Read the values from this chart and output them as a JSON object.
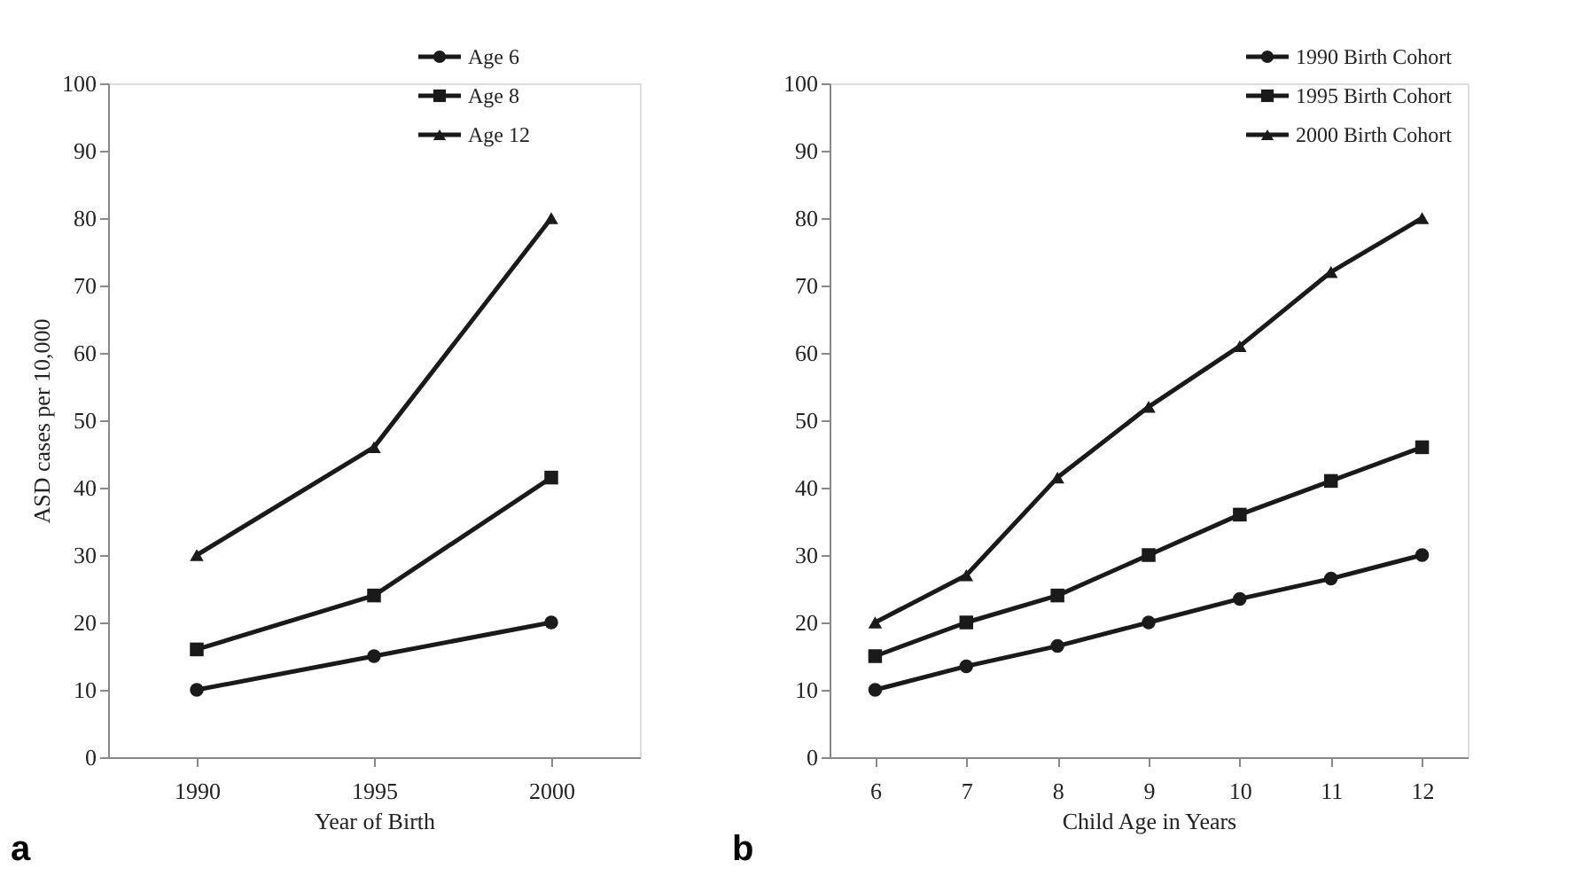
{
  "chart_data": [
    {
      "type": "line",
      "xlabel": "Year of Birth",
      "ylabel": "ASD cases per 10,000",
      "categories": [
        "1990",
        "1995",
        "2000"
      ],
      "ylim": [
        0,
        100
      ],
      "yticks": [
        0,
        10,
        20,
        30,
        40,
        50,
        60,
        70,
        80,
        90,
        100
      ],
      "grid": false,
      "legend": "top right",
      "annotations": [
        "a"
      ],
      "series": [
        {
          "name": "Age 6",
          "color": "#1a1a1a",
          "marker": "circle",
          "values": [
            10,
            15,
            20
          ]
        },
        {
          "name": "Age 8",
          "color": "#1a1a1a",
          "marker": "square",
          "values": [
            16,
            24,
            41.5
          ]
        },
        {
          "name": "Age 12",
          "color": "#1a1a1a",
          "marker": "triangle",
          "values": [
            30,
            46,
            80
          ]
        }
      ]
    },
    {
      "type": "line",
      "xlabel": "Child Age in Years",
      "categories": [
        "6",
        "7",
        "8",
        "9",
        "10",
        "11",
        "12"
      ],
      "ylim": [
        0,
        100
      ],
      "yticks": [
        0,
        10,
        20,
        30,
        40,
        50,
        60,
        70,
        80,
        90,
        100
      ],
      "grid": false,
      "legend": "top right",
      "annotations": [
        "b"
      ],
      "series": [
        {
          "name": "1990 Birth Cohort",
          "color": "#1a1a1a",
          "marker": "circle",
          "values": [
            10,
            13.5,
            16.5,
            20,
            23.5,
            26.5,
            30
          ]
        },
        {
          "name": "1995 Birth Cohort",
          "color": "#1a1a1a",
          "marker": "square",
          "values": [
            15,
            20,
            24,
            30,
            36,
            41,
            46
          ]
        },
        {
          "name": "2000 Birth Cohort",
          "color": "#1a1a1a",
          "marker": "triangle",
          "values": [
            20,
            27,
            41.5,
            52,
            61,
            72,
            80
          ]
        }
      ]
    }
  ]
}
